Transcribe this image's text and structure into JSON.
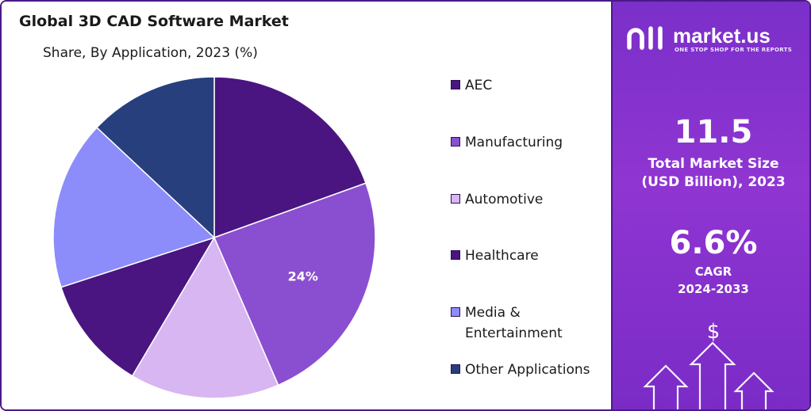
{
  "chart_data": {
    "type": "pie",
    "title": "Global 3D CAD Software Market",
    "subtitle": "Share, By Application, 2023 (%)",
    "categories": [
      "AEC",
      "Manufacturing",
      "Automotive",
      "Healthcare",
      "Media & Entertainment",
      "Other Applications"
    ],
    "values": [
      19.5,
      24,
      15,
      11.5,
      17,
      13
    ],
    "data_labels": [
      "",
      "24%",
      "",
      "",
      "",
      ""
    ],
    "colors": [
      "#4a1580",
      "#8a4fd0",
      "#d7b6f2",
      "#4a1580",
      "#8c8cfa",
      "#273f7d"
    ],
    "legend_position": "right"
  },
  "legend": {
    "items": [
      {
        "label_lines": [
          "AEC"
        ],
        "color": "#4a1580"
      },
      {
        "label_lines": [
          "Manufacturing"
        ],
        "color": "#8a4fd0"
      },
      {
        "label_lines": [
          "Automotive"
        ],
        "color": "#d7b6f2"
      },
      {
        "label_lines": [
          "Healthcare"
        ],
        "color": "#4a1580"
      },
      {
        "label_lines": [
          "Media &",
          "Entertainment"
        ],
        "color": "#8c8cfa"
      },
      {
        "label_lines": [
          "Other Applications"
        ],
        "color": "#273f7d"
      }
    ]
  },
  "brand": {
    "name": "market.us",
    "tagline": "ONE STOP SHOP FOR THE REPORTS"
  },
  "stats": {
    "market_size_value": "11.5",
    "market_size_label_1": "Total Market Size",
    "market_size_label_2": "(USD Billion), 2023",
    "cagr_value": "6.6%",
    "cagr_label_1": "CAGR",
    "cagr_label_2": "2024-2033",
    "dollar_symbol": "$"
  },
  "icons": {
    "logo": "market-us-logo-icon",
    "dollar": "dollar-icon",
    "arrows": "up-arrows-icon"
  }
}
